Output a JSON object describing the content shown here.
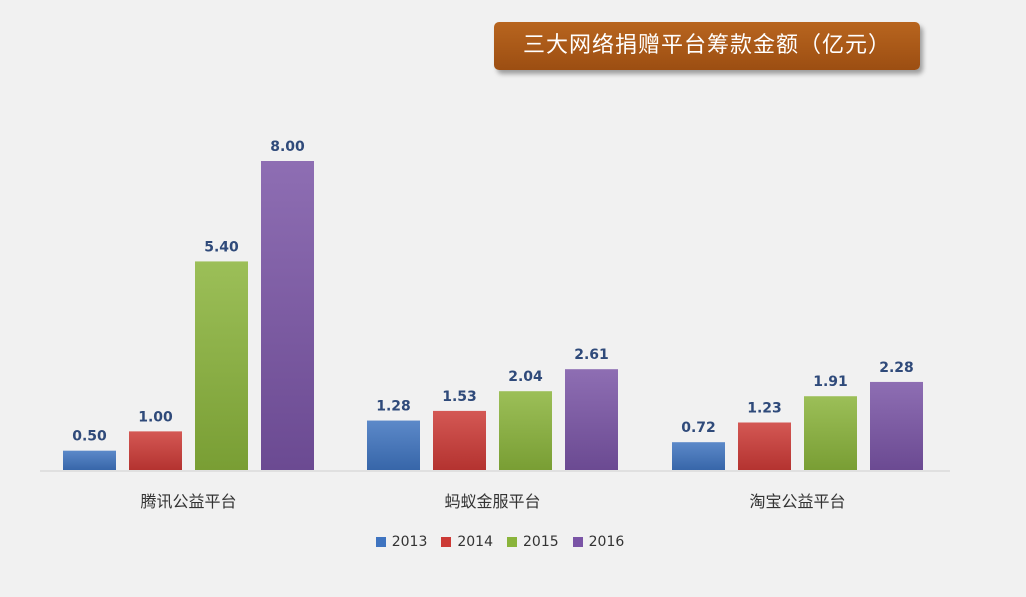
{
  "chart_data": {
    "type": "bar",
    "title": "三大网络捐赠平台筹款金额（亿元）",
    "categories": [
      "腾讯公益平台",
      "蚂蚁金服平台",
      "淘宝公益平台"
    ],
    "series": [
      {
        "name": "2013",
        "color": "#3f74c0",
        "values": [
          0.5,
          1.28,
          0.72
        ],
        "labels": [
          "0.50",
          "1.28",
          "0.72"
        ]
      },
      {
        "name": "2014",
        "color": "#cc3a36",
        "values": [
          1.0,
          1.53,
          1.23
        ],
        "labels": [
          "1.00",
          "1.53",
          "1.23"
        ]
      },
      {
        "name": "2015",
        "color": "#8ab43b",
        "values": [
          5.4,
          2.04,
          1.91
        ],
        "labels": [
          "5.40",
          "2.04",
          "1.91"
        ]
      },
      {
        "name": "2016",
        "color": "#7a54a6",
        "values": [
          8.0,
          2.61,
          2.28
        ],
        "labels": [
          "8.00",
          "2.61",
          "2.28"
        ]
      }
    ],
    "ylim": [
      0,
      8
    ],
    "legend_position": "bottom",
    "grid": false
  }
}
